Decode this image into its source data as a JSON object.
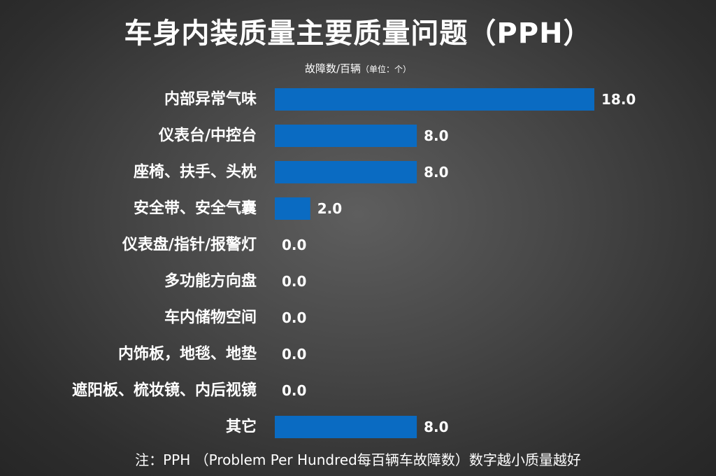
{
  "chart_data": {
    "type": "bar",
    "orientation": "horizontal",
    "title": "车身内装质量主要质量问题（PPH）",
    "subtitle_main": "故障数/百辆",
    "subtitle_unit": "（单位：个）",
    "categories": [
      "内部异常气味",
      "仪表台/中控台",
      "座椅、扶手、头枕",
      "安全带、安全气囊",
      "仪表盘/指针/报警灯",
      "多功能方向盘",
      "车内储物空间",
      "内饰板，地毯、地垫",
      "遮阳板、梳妆镜、内后视镜",
      "其它"
    ],
    "values": [
      18.0,
      8.0,
      8.0,
      2.0,
      0.0,
      0.0,
      0.0,
      0.0,
      0.0,
      8.0
    ],
    "value_labels": [
      "18.0",
      "8.0",
      "8.0",
      "2.0",
      "0.0",
      "0.0",
      "0.0",
      "0.0",
      "0.0",
      "8.0"
    ],
    "xlim": [
      0,
      18
    ],
    "grid": false,
    "legend": "none",
    "bar_color": "#0a6bc2",
    "footnote": "注：PPH （Problem Per Hundred每百辆车故障数）数字越小质量越好"
  }
}
